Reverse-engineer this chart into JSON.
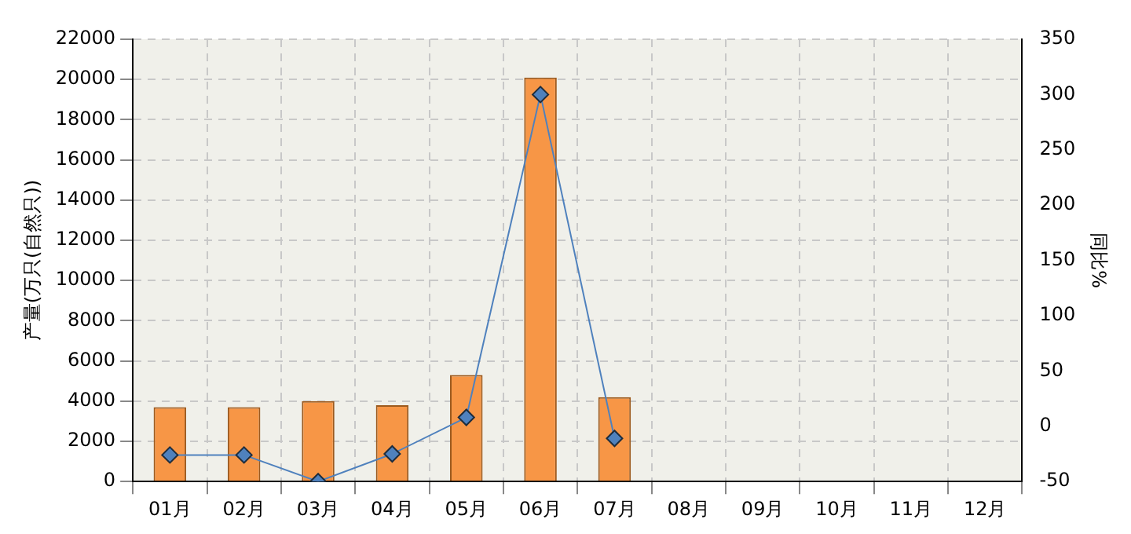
{
  "chart_data": {
    "type": "bar",
    "ylabel": "产量(万只(自然只))",
    "y2label": "同比%",
    "categories": [
      "01月",
      "02月",
      "03月",
      "04月",
      "05月",
      "06月",
      "07月",
      "08月",
      "09月",
      "10月",
      "11月",
      "12月"
    ],
    "series": [
      {
        "color": "#f79646",
        "values": [
          3700,
          3700,
          4000,
          3800,
          5300,
          20100,
          4200,
          null,
          null,
          null,
          null,
          null
        ]
      },
      {
        "type": "line",
        "axis": "y2",
        "color": "#4f81bd",
        "marker": "diamond",
        "values": [
          -26,
          -26,
          -50,
          -25,
          8,
          300,
          -11,
          null,
          null,
          null,
          null,
          null
        ]
      }
    ],
    "ylim": [
      0,
      22000
    ],
    "yticks": [
      0,
      2000,
      4000,
      6000,
      8000,
      10000,
      12000,
      14000,
      16000,
      18000,
      20000,
      22000
    ],
    "y2lim": [
      -50,
      350
    ],
    "y2ticks": [
      -50,
      0,
      50,
      100,
      150,
      200,
      250,
      300,
      350
    ],
    "grid": true,
    "legend": false
  }
}
